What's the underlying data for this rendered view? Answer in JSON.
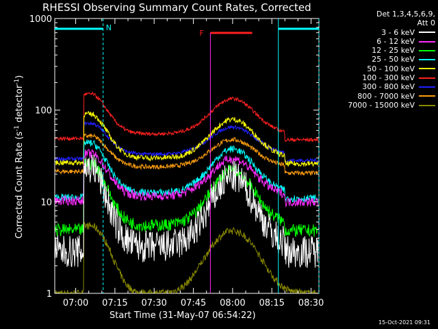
{
  "chart_data": {
    "type": "line",
    "title": "RHESSI Observing Summary Count Rates, Corrected",
    "xlabel": "Start Time (31-May-07 06:54:22)",
    "ylabel_main": "Corrected Count Rate (s",
    "ylabel_sup1": "-1",
    "ylabel_mid": " detector",
    "ylabel_sup2": "-1",
    "ylabel_end": ")",
    "yscale": "log",
    "ylim": [
      1,
      1000
    ],
    "y_ticks": [
      {
        "v": 1,
        "label": "1"
      },
      {
        "v": 10,
        "label": "10"
      },
      {
        "v": 100,
        "label": "100"
      },
      {
        "v": 1000,
        "label": "1000"
      }
    ],
    "xlim_min": [
      -8,
      93
    ],
    "x_ticks": [
      {
        "m": 0,
        "label": "07:00"
      },
      {
        "m": 15,
        "label": "07:15"
      },
      {
        "m": 30,
        "label": "07:30"
      },
      {
        "m": 45,
        "label": "07:45"
      },
      {
        "m": 60,
        "label": "08:00"
      },
      {
        "m": 75,
        "label": "08:15"
      },
      {
        "m": 90,
        "label": "08:30"
      }
    ],
    "legend_header": [
      "Det 1,3,4,5,6,9,",
      "Att 0"
    ],
    "series": [
      {
        "name": "3 - 6 keV",
        "color": "#ffffff"
      },
      {
        "name": "6 - 12 keV",
        "color": "#ff2cff"
      },
      {
        "name": "12 - 25 keV",
        "color": "#00ff00"
      },
      {
        "name": "25 - 50 keV",
        "color": "#00ffff"
      },
      {
        "name": "50 - 100 keV",
        "color": "#ffff00"
      },
      {
        "name": "100 - 300 keV",
        "color": "#ff2020"
      },
      {
        "name": "300 - 800 keV",
        "color": "#2020ff"
      },
      {
        "name": "800 - 7000 keV",
        "color": "#ff9f10"
      },
      {
        "name": "7000 - 15000 keV",
        "color": "#8a8a00"
      }
    ],
    "annotations": [
      {
        "text": "N",
        "color": "#00ffff"
      },
      {
        "text": "F",
        "color": "#ff2020"
      }
    ],
    "night_intervals_min": [
      [
        -8,
        10.5
      ],
      [
        77.5,
        93
      ]
    ],
    "flare_interval_min": [
      51.5,
      67.5
    ]
  },
  "timestamp": "15-Oct-2021 09:31"
}
